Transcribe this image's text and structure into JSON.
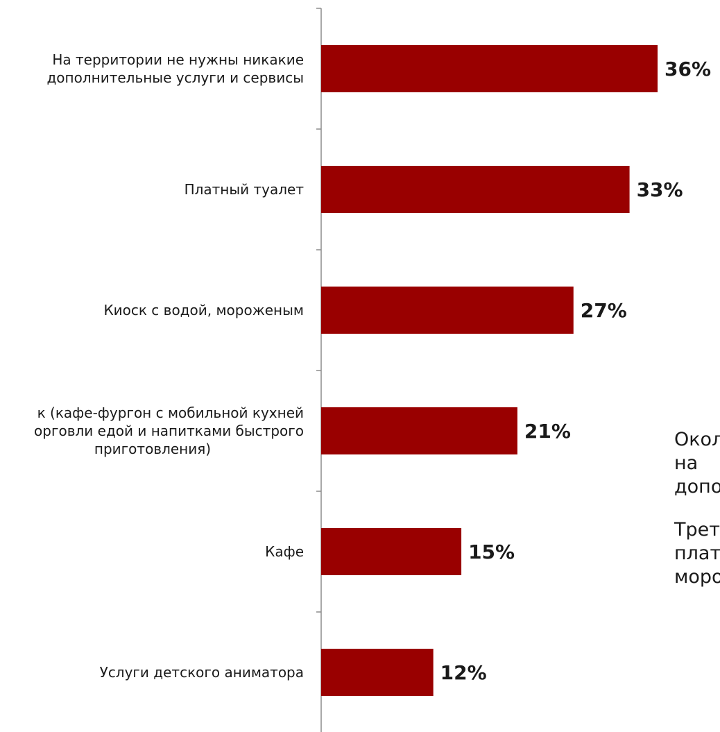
{
  "chart_data": {
    "type": "bar",
    "orientation": "horizontal",
    "categories": [
      [
        "На территории не нужны никакие",
        "дополнительные услуги и сервисы"
      ],
      [
        "Платный туалет"
      ],
      [
        "Киоск с водой, мороженым"
      ],
      [
        "к (кафе-фургон с мобильной кухней",
        "орговли едой и напитками быстрого",
        "приготовления)"
      ],
      [
        "Кафе"
      ],
      [
        "Услуги детского аниматора"
      ]
    ],
    "values": [
      36,
      33,
      27,
      21,
      15,
      12
    ],
    "value_labels": [
      "36%",
      "33%",
      "27%",
      "21%",
      "15%",
      "12%"
    ],
    "xlim": [
      0,
      40
    ],
    "grid": false,
    "legend": "none",
    "bar_color": "#990000",
    "axis_color": "#8c8c8c"
  },
  "side_note": {
    "lines": [
      "Окол",
      "на",
      "допо",
      "",
      "Трет",
      "плат",
      "моро"
    ]
  }
}
